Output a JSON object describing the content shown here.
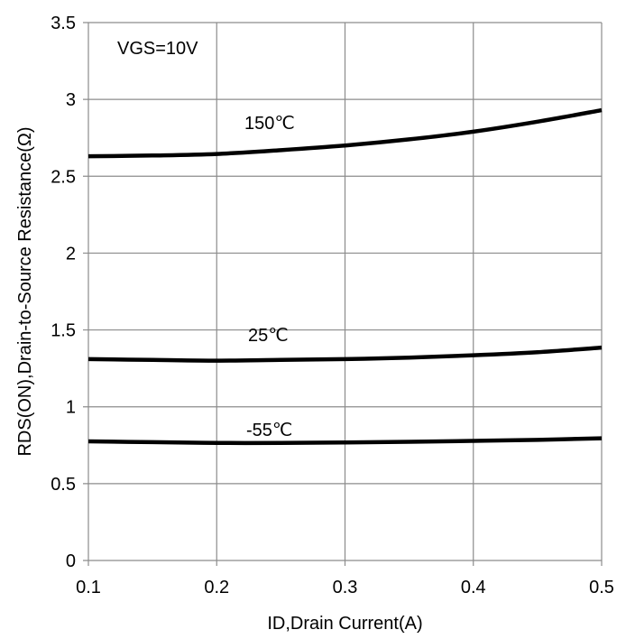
{
  "chart_data": {
    "type": "line",
    "title": "",
    "xlabel": "ID,Drain Current(A)",
    "ylabel": "RDS(ON),Drain-to-Source Resistance(Ω)",
    "xlim": [
      0.1,
      0.5
    ],
    "ylim": [
      0,
      3.5
    ],
    "xticks": [
      0.1,
      0.2,
      0.3,
      0.4,
      0.5
    ],
    "yticks": [
      0,
      0.5,
      1,
      1.5,
      2,
      2.5,
      3,
      3.5
    ],
    "xtick_labels": [
      "0.1",
      "0.2",
      "0.3",
      "0.4",
      "0.5"
    ],
    "ytick_labels": [
      "0",
      "0.5",
      "1",
      "1.5",
      "2",
      "2.5",
      "3",
      "3.5"
    ],
    "grid": true,
    "legend": "none",
    "annotations": [
      {
        "text": "VGS=10V"
      },
      {
        "text": "150℃"
      },
      {
        "text": "25℃"
      },
      {
        "text": "-55℃"
      }
    ],
    "series": [
      {
        "label": "150℃",
        "x": [
          0.1,
          0.15,
          0.2,
          0.25,
          0.3,
          0.35,
          0.4,
          0.45,
          0.5
        ],
        "y": [
          2.63,
          2.635,
          2.645,
          2.67,
          2.7,
          2.74,
          2.79,
          2.855,
          2.93
        ]
      },
      {
        "label": "25℃",
        "x": [
          0.1,
          0.15,
          0.2,
          0.25,
          0.3,
          0.35,
          0.4,
          0.45,
          0.5
        ],
        "y": [
          1.31,
          1.305,
          1.3,
          1.305,
          1.31,
          1.32,
          1.335,
          1.355,
          1.385
        ]
      },
      {
        "label": "-55℃",
        "x": [
          0.1,
          0.15,
          0.2,
          0.25,
          0.3,
          0.35,
          0.4,
          0.45,
          0.5
        ],
        "y": [
          0.775,
          0.77,
          0.765,
          0.765,
          0.768,
          0.772,
          0.778,
          0.785,
          0.795
        ]
      }
    ]
  }
}
